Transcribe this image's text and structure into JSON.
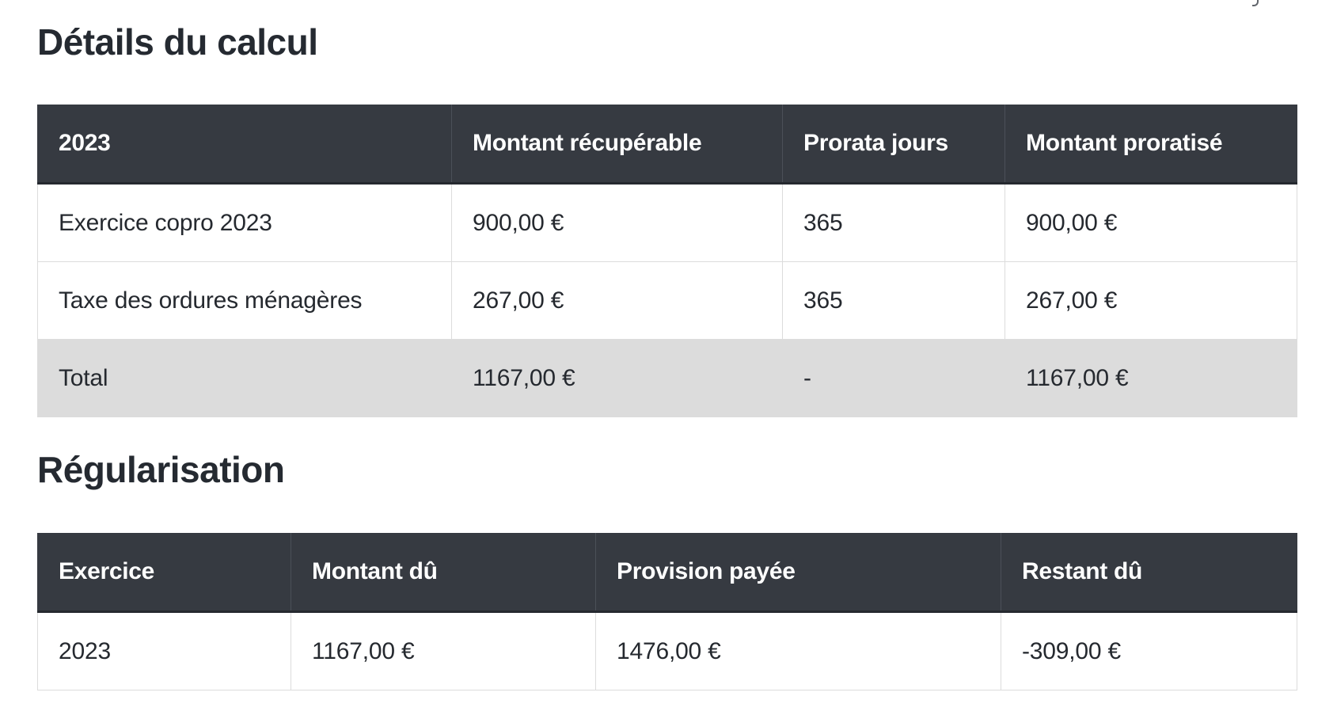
{
  "details": {
    "title": "Détails du calcul",
    "headers": [
      "2023",
      "Montant récupérable",
      "Prorata jours",
      "Montant proratisé"
    ],
    "rows": [
      [
        "Exercice copro 2023",
        "900,00 €",
        "365",
        "900,00 €"
      ],
      [
        "Taxe des ordures ménagères",
        "267,00 €",
        "365",
        "267,00 €"
      ]
    ],
    "total": [
      "Total",
      "1167,00 €",
      "-",
      "1167,00 €"
    ]
  },
  "regularisation": {
    "title": "Régularisation",
    "headers": [
      "Exercice",
      "Montant dû",
      "Provision payée",
      "Restant dû"
    ],
    "rows": [
      [
        "2023",
        "1167,00 €",
        "1476,00 €",
        "-309,00 €"
      ]
    ]
  }
}
